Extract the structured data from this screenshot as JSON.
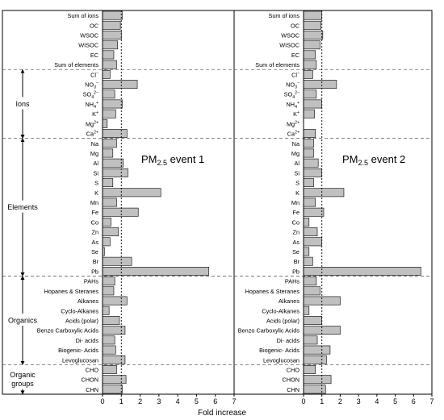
{
  "chart_data": {
    "type": "bar",
    "orientation": "horizontal",
    "xlabel": "Fold increase",
    "xlim": [
      0,
      7
    ],
    "xticks": [
      0,
      1,
      2,
      3,
      4,
      5,
      6,
      7
    ],
    "reference_line": 1,
    "bar_color": "#c0c0c0",
    "categories": [
      {
        "label": "Sum of ions"
      },
      {
        "label": "OC"
      },
      {
        "label": "WSOC"
      },
      {
        "label": "WISOC"
      },
      {
        "label": "EC"
      },
      {
        "label": "Sum of elements"
      },
      {
        "label": "Cl",
        "sup": "−"
      },
      {
        "label": "NO",
        "sub": "3",
        "sup": "−"
      },
      {
        "label": "SO",
        "sub": "4",
        "sup": "2−"
      },
      {
        "label": "NH",
        "sub": "4",
        "sup": "+"
      },
      {
        "label": "K",
        "sup": "+"
      },
      {
        "label": "Mg",
        "sup": "2+"
      },
      {
        "label": "Ca",
        "sup": "2+"
      },
      {
        "label": "Na"
      },
      {
        "label": "Mg"
      },
      {
        "label": "Al"
      },
      {
        "label": "Si"
      },
      {
        "label": "S"
      },
      {
        "label": "K"
      },
      {
        "label": "Mn"
      },
      {
        "label": "Fe"
      },
      {
        "label": "Co"
      },
      {
        "label": "Zn"
      },
      {
        "label": "As"
      },
      {
        "label": "Se"
      },
      {
        "label": "Br"
      },
      {
        "label": "Pb"
      },
      {
        "label": "PAHs"
      },
      {
        "label": "Hopanes & Steranes"
      },
      {
        "label": "Alkanes"
      },
      {
        "label": "Cyclo-Alkanes"
      },
      {
        "label": "Acids (polar)"
      },
      {
        "label": "Benzo Carboxylic Acids"
      },
      {
        "label": "Di- acids"
      },
      {
        "label": "Biogenic- Acids"
      },
      {
        "label": "Levoglucosan"
      },
      {
        "label": "CHO"
      },
      {
        "label": "CHON"
      },
      {
        "label": "CHN"
      }
    ],
    "groups": [
      {
        "label": "Ions",
        "label_lines": [
          "Ions"
        ],
        "from": 6,
        "to": 12
      },
      {
        "label": "Elements",
        "label_lines": [
          "Elements"
        ],
        "from": 13,
        "to": 26
      },
      {
        "label": "Organics",
        "label_lines": [
          "Organics"
        ],
        "from": 27,
        "to": 35
      },
      {
        "label": "Organic groups",
        "label_lines": [
          "Organic",
          "groups"
        ],
        "from": 36,
        "to": 38
      }
    ],
    "panels": [
      {
        "annotation": {
          "prefix": "PM",
          "sub": "2.5",
          "suffix": " event 1"
        },
        "values": [
          1.05,
          0.95,
          1.0,
          0.8,
          0.6,
          0.75,
          0.4,
          1.85,
          0.65,
          1.05,
          0.7,
          0.25,
          1.3,
          0.75,
          0.55,
          1.1,
          1.35,
          0.55,
          3.1,
          0.75,
          1.9,
          0.45,
          0.85,
          0.4,
          0.1,
          1.55,
          5.65,
          0.65,
          0.6,
          1.3,
          0.35,
          0.9,
          1.2,
          0.65,
          0.7,
          1.2,
          0.75,
          1.25,
          1.05
        ]
      },
      {
        "annotation": {
          "prefix": "PM",
          "sub": "2.5",
          "suffix": " event 2"
        },
        "values": [
          1.0,
          0.95,
          1.05,
          0.9,
          0.65,
          0.7,
          0.5,
          1.8,
          0.7,
          1.0,
          0.6,
          0.0,
          0.65,
          0.55,
          0.55,
          0.8,
          1.0,
          0.55,
          2.2,
          0.65,
          1.1,
          0.3,
          0.75,
          1.0,
          0.3,
          0.5,
          6.4,
          0.7,
          0.9,
          2.0,
          0.3,
          1.0,
          2.0,
          0.75,
          1.45,
          1.25,
          0.65,
          1.5,
          1.2
        ]
      }
    ]
  }
}
